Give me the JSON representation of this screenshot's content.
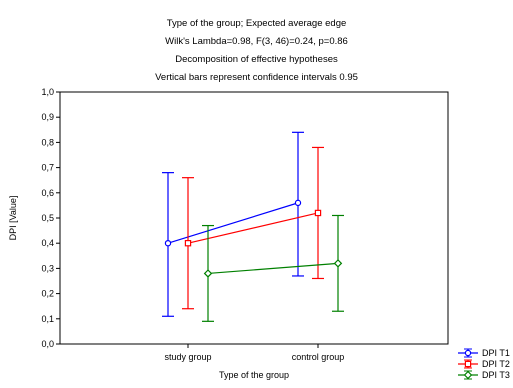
{
  "chart_data": {
    "type": "line",
    "title_lines": [
      "Type of the group; Expected average edge",
      "Wilk's Lambda=0.98, F(3, 46)=0.24, p=0.86",
      "Decomposition of effective hypotheses",
      "Vertical bars represent confidence intervals 0.95"
    ],
    "xlabel": "Type of the group",
    "ylabel": "DPI [Value]",
    "categories": [
      "study group",
      "control group"
    ],
    "ylim": [
      0,
      1
    ],
    "yticks": [
      "0,0",
      "0,1",
      "0,2",
      "0,3",
      "0,4",
      "0,5",
      "0,6",
      "0,7",
      "0,8",
      "0,9",
      "1,0"
    ],
    "grid": false,
    "legend_position": "bottom-right",
    "series": [
      {
        "name": "DPI T1",
        "color": "#0000ff",
        "marker": "circle",
        "values": [
          0.4,
          0.56
        ],
        "lower": [
          0.11,
          0.27
        ],
        "upper": [
          0.68,
          0.84
        ]
      },
      {
        "name": "DPI T2",
        "color": "#ff0000",
        "marker": "square",
        "values": [
          0.4,
          0.52
        ],
        "lower": [
          0.14,
          0.26
        ],
        "upper": [
          0.66,
          0.78
        ]
      },
      {
        "name": "DPI T3",
        "color": "#008000",
        "marker": "diamond",
        "values": [
          0.28,
          0.32
        ],
        "lower": [
          0.09,
          0.13
        ],
        "upper": [
          0.47,
          0.51
        ]
      }
    ]
  }
}
